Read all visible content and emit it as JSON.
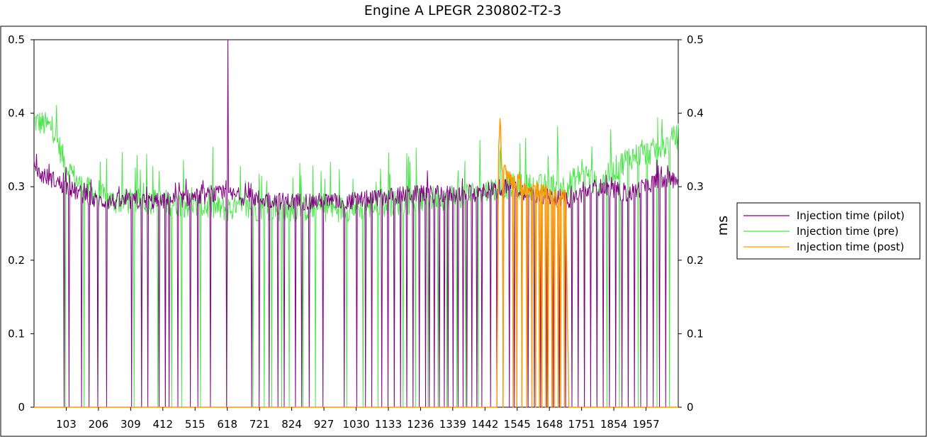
{
  "chart_data": {
    "type": "line",
    "title": "Engine A   LPEGR 230802-T2-3",
    "y_unit_label": "ms",
    "xlim": [
      0,
      2060
    ],
    "ylim": [
      0,
      0.5
    ],
    "x_ticks": [
      103,
      206,
      309,
      412,
      515,
      618,
      721,
      824,
      927,
      1030,
      1133,
      1236,
      1339,
      1442,
      1545,
      1648,
      1751,
      1854,
      1957
    ],
    "y_ticks": [
      0,
      0.1,
      0.2,
      0.3,
      0.4,
      0.5
    ],
    "y_tick_labels": [
      "0",
      "0.1",
      "0.2",
      "0.3",
      "0.4",
      "0.5"
    ],
    "grid": false,
    "legend_position": "right",
    "series": [
      {
        "name": "Injection time (pilot)",
        "color": "#800080",
        "description_points": {
          "baseline_segments": [
            [
              0,
              0.32
            ],
            [
              60,
              0.31
            ],
            [
              100,
              0.3
            ],
            [
              200,
              0.28
            ],
            [
              400,
              0.28
            ],
            [
              600,
              0.29
            ],
            [
              800,
              0.28
            ],
            [
              1000,
              0.28
            ],
            [
              1200,
              0.29
            ],
            [
              1400,
              0.29
            ],
            [
              1500,
              0.3
            ],
            [
              1600,
              0.29
            ],
            [
              1700,
              0.28
            ],
            [
              1800,
              0.3
            ],
            [
              1900,
              0.29
            ],
            [
              2000,
              0.31
            ],
            [
              2060,
              0.31
            ]
          ],
          "spike_to_max_at": [
            618
          ],
          "dropouts_to_zero_at": [
            95,
            110,
            150,
            175,
            205,
            230,
            310,
            345,
            365,
            400,
            420,
            430,
            460,
            500,
            525,
            565,
            615,
            695,
            720,
            750,
            780,
            800,
            835,
            855,
            880,
            925,
            990,
            1030,
            1060,
            1080,
            1110,
            1130,
            1150,
            1170,
            1190,
            1210,
            1230,
            1250,
            1265,
            1280,
            1295,
            1310,
            1325,
            1340,
            1355,
            1370,
            1385,
            1400,
            1415,
            1430,
            1460,
            1480,
            1500,
            1520,
            1535,
            1560,
            1580,
            1600,
            1620,
            1640,
            1660,
            1680,
            1700,
            1720,
            1740,
            1760,
            1780,
            1800,
            1820,
            1840,
            1860,
            1880,
            1900,
            1920,
            1940,
            1960,
            1980,
            2000,
            2020
          ]
        }
      },
      {
        "name": "Injection time (pre)",
        "color": "#4ce54c",
        "description_points": {
          "baseline_segments": [
            [
              0,
              0.39
            ],
            [
              60,
              0.38
            ],
            [
              100,
              0.33
            ],
            [
              150,
              0.3
            ],
            [
              250,
              0.28
            ],
            [
              400,
              0.28
            ],
            [
              600,
              0.27
            ],
            [
              800,
              0.27
            ],
            [
              1000,
              0.27
            ],
            [
              1200,
              0.28
            ],
            [
              1400,
              0.29
            ],
            [
              1500,
              0.3
            ],
            [
              1600,
              0.3
            ],
            [
              1700,
              0.3
            ],
            [
              1760,
              0.32
            ],
            [
              1800,
              0.3
            ],
            [
              1900,
              0.34
            ],
            [
              2000,
              0.35
            ],
            [
              2060,
              0.37
            ]
          ],
          "dropouts_to_zero_at": [
            100,
            160,
            205,
            320,
            345,
            395,
            420,
            440,
            470,
            530,
            615,
            700,
            735,
            760,
            790,
            815,
            860,
            900,
            1000,
            1050,
            1100,
            1150,
            1180,
            1220,
            1260,
            1290,
            1320,
            1350,
            1380,
            1420,
            1560,
            1600,
            1640,
            1680,
            1720,
            1760,
            1800,
            1830,
            1870,
            1900,
            1930,
            1960,
            1990,
            2030
          ]
        }
      },
      {
        "name": "Injection time (post)",
        "color": "#ff9900",
        "description_points": {
          "baseline_segments": [
            [
              0,
              0
            ],
            [
              1480,
              0
            ],
            [
              1485,
              0.33
            ],
            [
              1490,
              0.4
            ],
            [
              1495,
              0.33
            ],
            [
              1520,
              0.31
            ],
            [
              1560,
              0.3
            ],
            [
              1600,
              0.3
            ],
            [
              1640,
              0.29
            ],
            [
              1680,
              0.28
            ],
            [
              1700,
              0.29
            ],
            [
              1710,
              0
            ],
            [
              2060,
              0
            ]
          ],
          "dropouts_to_zero_at": [
            1500,
            1530,
            1545,
            1560,
            1575,
            1590,
            1605,
            1615,
            1625,
            1635,
            1645,
            1655,
            1665,
            1675,
            1685,
            1695
          ]
        }
      }
    ]
  }
}
